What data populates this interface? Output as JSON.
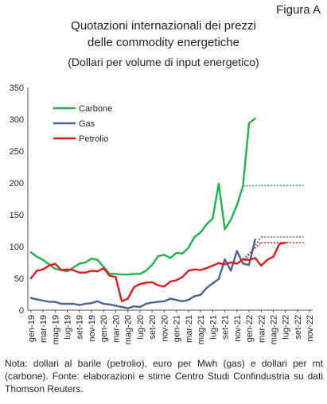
{
  "figure_label": "Figura A",
  "title_line1": "Quotazioni internazionali dei prezzi",
  "title_line2": "delle commodity energetiche",
  "subtitle": "(Dollari per volume di input energetico)",
  "note": "Nota: dollari al barile (petrolio), euro per Mwh (gas) e dollari per mt (carbone). Fonte: elaborazioni e stime Centro Studi Confindustria su dati Thomson Reuters.",
  "chart_data": {
    "type": "line",
    "ylim": [
      0,
      350
    ],
    "yticks": [
      0,
      50,
      100,
      150,
      200,
      250,
      300,
      350
    ],
    "xlabels": [
      "gen-19",
      "mar-19",
      "mag-19",
      "lug-19",
      "set-19",
      "nov-19",
      "gen-20",
      "mar-20",
      "mag-20",
      "lug-20",
      "set-20",
      "nov-20",
      "gen-21",
      "mar-21",
      "mag-21",
      "lug-21",
      "set-21",
      "nov-21",
      "gen-22",
      "mar-22",
      "mag-22",
      "lug-22",
      "set-22",
      "nov-22"
    ],
    "legend": "top-left",
    "series": [
      {
        "name": "Carbone",
        "color": "#22b24c",
        "values": [
          91,
          84,
          79,
          72,
          65,
          63,
          61,
          67,
          73,
          75,
          81,
          79,
          68,
          57,
          57,
          56,
          56,
          57,
          57,
          62,
          71,
          85,
          87,
          82,
          90,
          89,
          98,
          115,
          122,
          135,
          144,
          199,
          127,
          142,
          165,
          195,
          294,
          301
        ],
        "forecast": 196
      },
      {
        "name": "Gas",
        "color": "#4a6494",
        "values": [
          19,
          17,
          15,
          13,
          13,
          10,
          10,
          10,
          8,
          10,
          11,
          14,
          10,
          9,
          7,
          5,
          3,
          6,
          5,
          10,
          12,
          13,
          14,
          18,
          16,
          14,
          16,
          22,
          24,
          35,
          42,
          49,
          80,
          62,
          93,
          73,
          71,
          111
        ],
        "forecast": 115
      },
      {
        "name": "Petrolio",
        "color": "#e21a1c",
        "values": [
          50,
          62,
          64,
          70,
          73,
          63,
          64,
          63,
          59,
          59,
          62,
          61,
          66,
          54,
          52,
          14,
          18,
          36,
          41,
          43,
          44,
          39,
          37,
          45,
          47,
          52,
          62,
          64,
          63,
          66,
          70,
          74,
          72,
          75,
          73,
          80,
          79,
          82,
          70,
          79,
          84,
          104,
          106
        ],
        "forecast": 106
      }
    ],
    "forecast_start_index": 38,
    "forecast_end_index": 45
  }
}
